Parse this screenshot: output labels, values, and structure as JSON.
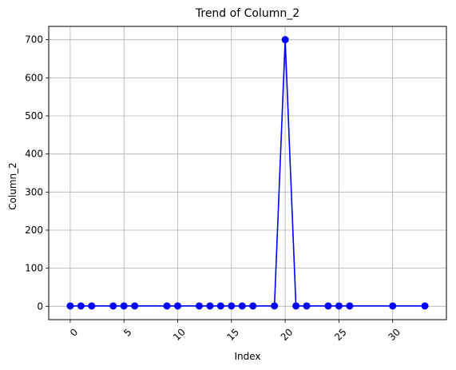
{
  "chart_data": {
    "type": "line",
    "title": "Trend of Column_2",
    "xlabel": "Index",
    "ylabel": "Column_2",
    "xlim": [
      -2,
      35
    ],
    "ylim": [
      -35,
      735
    ],
    "x_ticks": [
      0,
      5,
      10,
      15,
      20,
      25,
      30
    ],
    "x_tick_labels": [
      "0",
      "5",
      "10",
      "15",
      "20",
      "25",
      "30"
    ],
    "x_tick_rotation": 45,
    "y_ticks": [
      0,
      100,
      200,
      300,
      400,
      500,
      600,
      700
    ],
    "y_tick_labels": [
      "0",
      "100",
      "200",
      "300",
      "400",
      "500",
      "600",
      "700"
    ],
    "grid": true,
    "series": [
      {
        "color": "#0000ff",
        "marker": "circle",
        "x": [
          0,
          1,
          2,
          4,
          5,
          6,
          9,
          10,
          12,
          13,
          14,
          15,
          16,
          17,
          19,
          20,
          21,
          22,
          24,
          25,
          26,
          30,
          33
        ],
        "y": [
          1,
          1,
          1,
          1,
          1,
          1,
          1,
          1,
          1,
          1,
          1,
          1,
          1,
          1,
          1,
          700,
          1,
          1,
          1,
          1,
          1,
          1,
          1
        ]
      }
    ]
  }
}
